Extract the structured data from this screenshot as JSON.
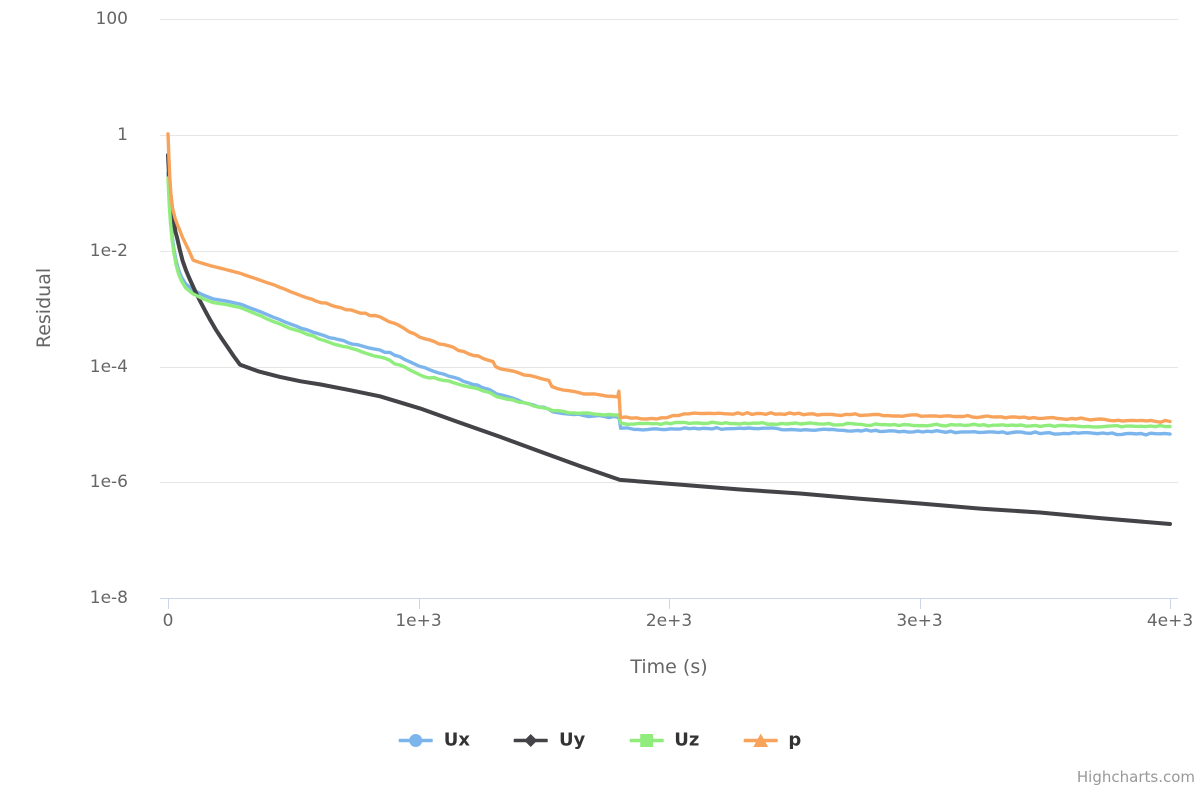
{
  "chart": {
    "credits": "Highcharts.com",
    "colors": {
      "background": "#ffffff",
      "grid": "#e6e6e6",
      "axis_line": "#ccd6eb",
      "tick_label": "#666666",
      "axis_title": "#666666",
      "legend_text": "#333333",
      "credits": "#999999"
    },
    "x_axis": {
      "title": "Time (s)",
      "ticks": [
        {
          "v": 0,
          "label": "0"
        },
        {
          "v": 1000,
          "label": "1e+3"
        },
        {
          "v": 2000,
          "label": "2e+3"
        },
        {
          "v": 3000,
          "label": "3e+3"
        },
        {
          "v": 4000,
          "label": "4e+3"
        }
      ]
    },
    "y_axis": {
      "title": "Residual",
      "ticks": [
        {
          "v": 100,
          "label": "100"
        },
        {
          "v": 1,
          "label": "1"
        },
        {
          "v": 0.01,
          "label": "1e-2"
        },
        {
          "v": 0.0001,
          "label": "1e-4"
        },
        {
          "v": 1e-06,
          "label": "1e-6"
        },
        {
          "v": 1e-08,
          "label": "1e-8"
        }
      ]
    }
  },
  "chart_data": {
    "type": "line",
    "title": "",
    "xlabel": "Time (s)",
    "ylabel": "Residual",
    "x_range": [
      0,
      4000
    ],
    "y_range": [
      1e-08,
      100
    ],
    "y_scale": "log",
    "grid": true,
    "legend_position": "bottom",
    "series": [
      {
        "name": "Ux",
        "color": "#7cb5ec",
        "marker": "circle",
        "noise": 1.0,
        "points": [
          [
            0,
            0.22
          ],
          [
            5,
            0.075
          ],
          [
            10,
            0.036
          ],
          [
            16,
            0.019
          ],
          [
            24,
            0.0105
          ],
          [
            32,
            0.0068
          ],
          [
            42,
            0.0047
          ],
          [
            54,
            0.0035
          ],
          [
            70,
            0.0027
          ],
          [
            100,
            0.0021
          ],
          [
            140,
            0.00172
          ],
          [
            180,
            0.00147
          ],
          [
            230,
            0.00136
          ],
          [
            287,
            0.0012
          ],
          [
            350,
            0.00095
          ],
          [
            420,
            0.00071
          ],
          [
            490,
            0.00054
          ],
          [
            555,
            0.00043
          ],
          [
            625,
            0.00034
          ],
          [
            700,
            0.00028
          ],
          [
            775,
            0.000226
          ],
          [
            846,
            0.000193
          ],
          [
            925,
            0.000148
          ],
          [
            1006,
            0.0001
          ],
          [
            1100,
            7.4e-05
          ],
          [
            1200,
            5.2e-05
          ],
          [
            1273,
            4.1e-05
          ],
          [
            1285,
            3.95e-05
          ],
          [
            1312,
            3.35e-05
          ],
          [
            1400,
            2.6e-05
          ],
          [
            1460,
            2.15e-05
          ],
          [
            1520,
            1.82e-05
          ],
          [
            1536,
            1.65e-05
          ],
          [
            1620,
            1.48e-05
          ],
          [
            1700,
            1.39e-05
          ],
          [
            1800,
            1.32e-05
          ],
          [
            1807,
            8.6e-06
          ],
          [
            1860,
            8.2e-06
          ],
          [
            1950,
            8.4e-06
          ],
          [
            2100,
            8.6e-06
          ],
          [
            2300,
            8.5e-06
          ],
          [
            2600,
            8.1e-06
          ],
          [
            2900,
            7.7e-06
          ],
          [
            3200,
            7.4e-06
          ],
          [
            3500,
            7.1e-06
          ],
          [
            3750,
            6.9e-06
          ],
          [
            4000,
            6.8e-06
          ]
        ]
      },
      {
        "name": "Uy",
        "color": "#434348",
        "marker": "diamond",
        "noise": 0,
        "points": [
          [
            0,
            0.45
          ],
          [
            4,
            0.2
          ],
          [
            9,
            0.1
          ],
          [
            15,
            0.058
          ],
          [
            22,
            0.034
          ],
          [
            30,
            0.021
          ],
          [
            36,
            0.017
          ],
          [
            46,
            0.011
          ],
          [
            58,
            0.0068
          ],
          [
            72,
            0.0046
          ],
          [
            86,
            0.0033
          ],
          [
            100,
            0.0024
          ],
          [
            115,
            0.00175
          ],
          [
            132,
            0.00125
          ],
          [
            150,
            0.00089
          ],
          [
            168,
            0.00064
          ],
          [
            190,
            0.00044
          ],
          [
            215,
            0.0003
          ],
          [
            240,
            0.00021
          ],
          [
            262,
            0.000152
          ],
          [
            287,
            0.000108
          ],
          [
            360,
            8.26e-05
          ],
          [
            447,
            6.6e-05
          ],
          [
            530,
            5.55e-05
          ],
          [
            607,
            4.9e-05
          ],
          [
            727,
            3.9e-05
          ],
          [
            846,
            3.05e-05
          ],
          [
            1006,
            1.89e-05
          ],
          [
            1166,
            1.07e-05
          ],
          [
            1325,
            6.1e-06
          ],
          [
            1485,
            3.4e-06
          ],
          [
            1645,
            1.9e-06
          ],
          [
            1804,
            1.1e-06
          ],
          [
            2044,
            9.1e-07
          ],
          [
            2284,
            7.5e-07
          ],
          [
            2523,
            6.4e-07
          ],
          [
            2763,
            5.2e-07
          ],
          [
            3002,
            4.3e-07
          ],
          [
            3242,
            3.5e-07
          ],
          [
            3481,
            3e-07
          ],
          [
            3721,
            2.4e-07
          ],
          [
            4000,
            1.9e-07
          ]
        ]
      },
      {
        "name": "Uz",
        "color": "#90ed7d",
        "marker": "square",
        "noise": 1.0,
        "points": [
          [
            0,
            0.18
          ],
          [
            5,
            0.06
          ],
          [
            10,
            0.03
          ],
          [
            16,
            0.016
          ],
          [
            24,
            0.009
          ],
          [
            32,
            0.0058
          ],
          [
            42,
            0.004
          ],
          [
            54,
            0.003
          ],
          [
            70,
            0.0023
          ],
          [
            100,
            0.0018
          ],
          [
            140,
            0.00148
          ],
          [
            180,
            0.00127
          ],
          [
            230,
            0.00118
          ],
          [
            287,
            0.00105
          ],
          [
            350,
            0.00081
          ],
          [
            420,
            0.0006
          ],
          [
            490,
            0.00045
          ],
          [
            555,
            0.00036
          ],
          [
            625,
            0.00028
          ],
          [
            700,
            0.000222
          ],
          [
            775,
            0.000178
          ],
          [
            846,
            0.000146
          ],
          [
            925,
            0.000106
          ],
          [
            1006,
            7.15e-05
          ],
          [
            1100,
            5.75e-05
          ],
          [
            1200,
            4.45e-05
          ],
          [
            1273,
            3.65e-05
          ],
          [
            1285,
            3.52e-05
          ],
          [
            1312,
            3.02e-05
          ],
          [
            1400,
            2.42e-05
          ],
          [
            1460,
            2.08e-05
          ],
          [
            1520,
            1.85e-05
          ],
          [
            1536,
            1.72e-05
          ],
          [
            1620,
            1.58e-05
          ],
          [
            1700,
            1.51e-05
          ],
          [
            1800,
            1.46e-05
          ],
          [
            1807,
            1.05e-05
          ],
          [
            1860,
            1.01e-05
          ],
          [
            1950,
            1.03e-05
          ],
          [
            2100,
            1.06e-05
          ],
          [
            2300,
            1.05e-05
          ],
          [
            2600,
            1.02e-05
          ],
          [
            2900,
            9.9e-06
          ],
          [
            3200,
            9.7e-06
          ],
          [
            3500,
            9.5e-06
          ],
          [
            3750,
            9.3e-06
          ],
          [
            4000,
            9.2e-06
          ]
        ]
      },
      {
        "name": "p",
        "color": "#f7a35c",
        "marker": "triangle",
        "noise": 1.0,
        "points": [
          [
            0,
            1.05
          ],
          [
            3,
            0.45
          ],
          [
            7,
            0.18
          ],
          [
            12,
            0.09
          ],
          [
            18,
            0.055
          ],
          [
            28,
            0.037
          ],
          [
            38,
            0.028
          ],
          [
            48,
            0.022
          ],
          [
            58,
            0.017
          ],
          [
            68,
            0.0139
          ],
          [
            84,
            0.01
          ],
          [
            100,
            0.0069
          ],
          [
            130,
            0.0062
          ],
          [
            170,
            0.0055
          ],
          [
            210,
            0.005
          ],
          [
            250,
            0.0045
          ],
          [
            287,
            0.0041
          ],
          [
            350,
            0.0033
          ],
          [
            420,
            0.0026
          ],
          [
            490,
            0.00195
          ],
          [
            555,
            0.00153
          ],
          [
            650,
            0.00115
          ],
          [
            750,
            0.00089
          ],
          [
            846,
            0.00072
          ],
          [
            920,
            0.00052
          ],
          [
            1006,
            0.00032
          ],
          [
            1100,
            0.00024
          ],
          [
            1200,
            0.000165
          ],
          [
            1297,
            0.000122
          ],
          [
            1308,
            9.92e-05
          ],
          [
            1400,
            7.75e-05
          ],
          [
            1470,
            6.55e-05
          ],
          [
            1520,
            5.75e-05
          ],
          [
            1532,
            4.52e-05
          ],
          [
            1600,
            3.82e-05
          ],
          [
            1680,
            3.35e-05
          ],
          [
            1750,
            3.08e-05
          ],
          [
            1795,
            2.97e-05
          ],
          [
            1800,
            3.75e-05
          ],
          [
            1806,
            1.31e-05
          ],
          [
            1850,
            1.28e-05
          ],
          [
            1930,
            1.27e-05
          ],
          [
            1990,
            1.3e-05
          ],
          [
            2015,
            1.42e-05
          ],
          [
            2060,
            1.52e-05
          ],
          [
            2120,
            1.55e-05
          ],
          [
            2200,
            1.56e-05
          ],
          [
            2350,
            1.54e-05
          ],
          [
            2500,
            1.52e-05
          ],
          [
            2650,
            1.49e-05
          ],
          [
            2800,
            1.46e-05
          ],
          [
            2950,
            1.43e-05
          ],
          [
            3100,
            1.39e-05
          ],
          [
            3250,
            1.35e-05
          ],
          [
            3400,
            1.31e-05
          ],
          [
            3550,
            1.27e-05
          ],
          [
            3700,
            1.22e-05
          ],
          [
            3850,
            1.17e-05
          ],
          [
            4000,
            1.12e-05
          ]
        ]
      }
    ]
  }
}
